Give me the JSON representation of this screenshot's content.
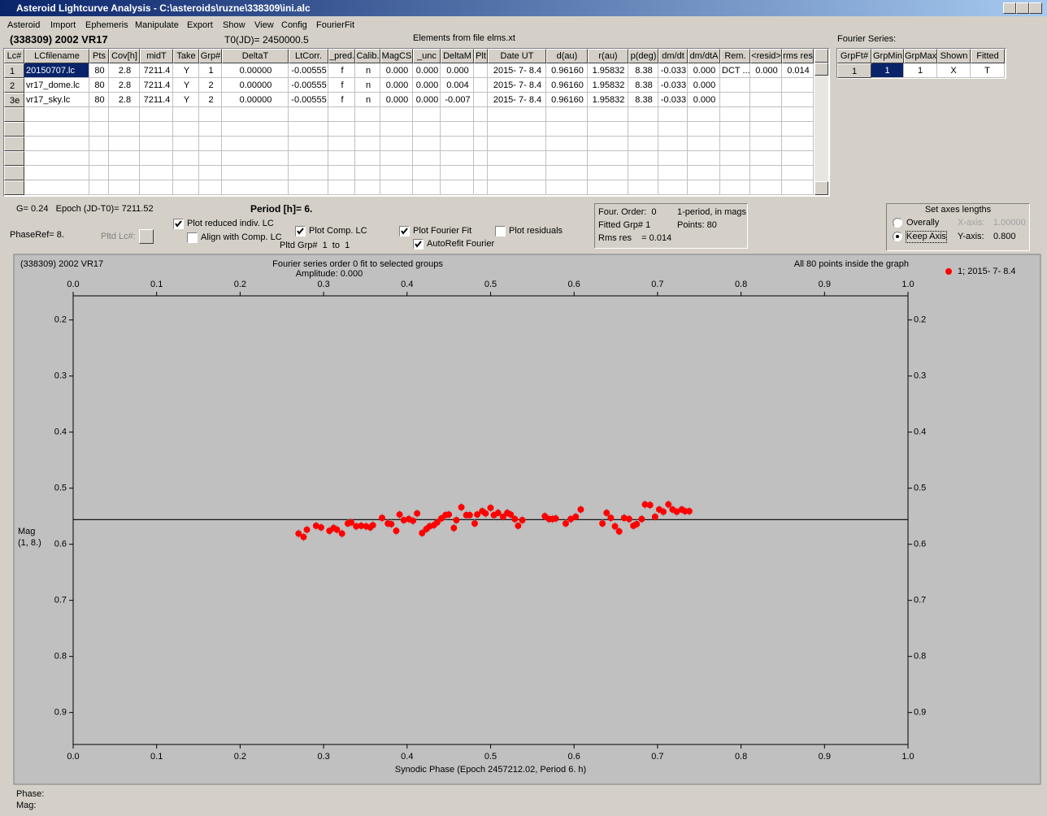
{
  "window": {
    "title": "Asteroid Lightcurve Analysis - C:\\asteroids\\ruzne\\338309\\ini.alc"
  },
  "menu": [
    "Asteroid",
    "Import",
    "Ephemeris",
    "Manipulate",
    "Export",
    "Show",
    "View",
    "Config",
    "FourierFit"
  ],
  "header": {
    "object": "(338309) 2002 VR17",
    "t0": "T0(JD)= 2450000.5",
    "elements": "Elements from file elms.xt",
    "fourier_label": "Fourier Series:"
  },
  "table": {
    "columns": [
      "Lc#",
      "LCfilename",
      "Pts",
      "Cov[h]",
      "midT",
      "Take",
      "Grp#",
      "DeltaT",
      "LtCorr.",
      "_pred.",
      "Calib.",
      "MagCS",
      "_unc",
      "DeltaM",
      "Plt",
      "Date UT",
      "d(au)",
      "r(au)",
      "p(deg)",
      "dm/dt",
      "dm/dtA",
      "Rem.",
      "<resid>",
      "rms res"
    ],
    "rows": [
      [
        "1",
        "20150707.lc",
        "80",
        "2.8",
        "7211.4",
        "Y",
        "1",
        "0.00000",
        "-0.00555",
        "f",
        "n",
        "0.000",
        "0.000",
        "0.000",
        "",
        "2015- 7- 8.4",
        "0.96160",
        "1.95832",
        "8.38",
        "-0.033",
        "0.000",
        "DCT ...",
        "0.000",
        "0.014"
      ],
      [
        "2",
        "vr17_dome.lc",
        "80",
        "2.8",
        "7211.4",
        "Y",
        "2",
        "0.00000",
        "-0.00555",
        "f",
        "n",
        "0.000",
        "0.000",
        "0.004",
        "",
        "2015- 7- 8.4",
        "0.96160",
        "1.95832",
        "8.38",
        "-0.033",
        "0.000",
        "",
        "",
        ""
      ],
      [
        "3e",
        "vr17_sky.lc",
        "80",
        "2.8",
        "7211.4",
        "Y",
        "2",
        "0.00000",
        "-0.00555",
        "f",
        "n",
        "0.000",
        "0.000",
        "-0.007",
        "",
        "2015- 7- 8.4",
        "0.96160",
        "1.95832",
        "8.38",
        "-0.033",
        "0.000",
        "",
        "",
        ""
      ]
    ]
  },
  "fourier_table": {
    "columns": [
      "GrpFt#",
      "GrpMin",
      "GrpMax",
      "Shown",
      "Fitted"
    ],
    "rows": [
      [
        "1",
        "1",
        "1",
        "X",
        "T"
      ]
    ]
  },
  "info": {
    "g_epoch": "G= 0.24   Epoch (JD-T0)= 7211.52",
    "period": "Period [h]= 6.",
    "phase_ref": "PhaseRef= 8.",
    "pltd_lc": "Pltd Lc#:",
    "pltd_grp": "Pltd Grp#  1  to  1"
  },
  "checkboxes": [
    {
      "label": "Plot reduced indiv. LC",
      "checked": true
    },
    {
      "label": "Align with Comp. LC",
      "checked": false
    },
    {
      "label": "Plot Comp. LC",
      "checked": true
    },
    {
      "label": "Plot Fourier Fit",
      "checked": true
    },
    {
      "label": "AutoRefit Fourier",
      "checked": true
    },
    {
      "label": "Plot residuals",
      "checked": false
    }
  ],
  "fit_box": {
    "order": "Four. Order:  0",
    "period_mode": "1-period, in mags",
    "fitted_grp": "Fitted Grp# 1",
    "points": "Points: 80",
    "rms": "Rms res    = 0.014"
  },
  "axes_box": {
    "title": "Set axes lengths",
    "options": [
      {
        "label": "Overally",
        "selected": false
      },
      {
        "label": "Keep Axis",
        "selected": true
      }
    ],
    "x_axis": {
      "label": "X-axis:",
      "value": "1.00000",
      "enabled": false
    },
    "y_axis": {
      "label": "Y-axis:",
      "value": "0.800",
      "enabled": true
    }
  },
  "chart_data": {
    "type": "scatter",
    "object_label": "(338309) 2002 VR17",
    "title": "Fourier series order 0 fit to selected groups",
    "subtitle": "Amplitude: 0.000",
    "note": "All 80 points inside the graph",
    "xlabel": "Synodic Phase (Epoch 2457212.02, Period 6. h)",
    "ylabel": "Mag",
    "ylabel_sub": "(1, 8.)",
    "xlim": [
      0,
      1
    ],
    "ylim": [
      0.957,
      0.157
    ],
    "xticks": [
      {
        "value": 0,
        "label": "0.0"
      },
      0.1,
      0.2,
      0.3,
      0.4,
      0.5,
      0.6,
      0.7,
      0.8,
      0.9,
      {
        "value": 1,
        "label": "1.0"
      }
    ],
    "yticks": [
      0.2,
      0.3,
      0.4,
      0.5,
      0.6,
      0.7,
      0.8,
      0.9
    ],
    "fit_level": 0.556,
    "series": [
      {
        "name": "1; 2015- 7- 8.4",
        "color": "#ff0000",
        "error": 0.008,
        "x": [
          0.27,
          0.276,
          0.28,
          0.291,
          0.297,
          0.307,
          0.312,
          0.316,
          0.322,
          0.329,
          0.333,
          0.339,
          0.345,
          0.351,
          0.356,
          0.359,
          0.37,
          0.377,
          0.381,
          0.387,
          0.391,
          0.396,
          0.402,
          0.407,
          0.412,
          0.418,
          0.423,
          0.427,
          0.432,
          0.436,
          0.441,
          0.446,
          0.45,
          0.456,
          0.459,
          0.465,
          0.471,
          0.475,
          0.481,
          0.484,
          0.49,
          0.494,
          0.5,
          0.504,
          0.509,
          0.515,
          0.52,
          0.524,
          0.529,
          0.533,
          0.538,
          0.565,
          0.57,
          0.574,
          0.578,
          0.59,
          0.596,
          0.602,
          0.608,
          0.634,
          0.639,
          0.644,
          0.649,
          0.654,
          0.66,
          0.666,
          0.671,
          0.675,
          0.681,
          0.685,
          0.691,
          0.697,
          0.702,
          0.707,
          0.713,
          0.718,
          0.723,
          0.729,
          0.733,
          0.738
        ],
        "values": [
          0.581,
          0.587,
          0.574,
          0.567,
          0.57,
          0.576,
          0.571,
          0.574,
          0.581,
          0.563,
          0.561,
          0.568,
          0.567,
          0.568,
          0.57,
          0.566,
          0.553,
          0.563,
          0.564,
          0.576,
          0.547,
          0.557,
          0.555,
          0.558,
          0.545,
          0.58,
          0.573,
          0.568,
          0.566,
          0.561,
          0.554,
          0.548,
          0.547,
          0.571,
          0.557,
          0.534,
          0.548,
          0.548,
          0.563,
          0.547,
          0.541,
          0.545,
          0.535,
          0.548,
          0.544,
          0.551,
          0.544,
          0.547,
          0.555,
          0.567,
          0.557,
          0.55,
          0.555,
          0.555,
          0.554,
          0.563,
          0.555,
          0.551,
          0.538,
          0.563,
          0.544,
          0.553,
          0.568,
          0.577,
          0.553,
          0.555,
          0.567,
          0.564,
          0.555,
          0.529,
          0.53,
          0.551,
          0.538,
          0.542,
          0.529,
          0.538,
          0.542,
          0.538,
          0.541,
          0.541
        ]
      }
    ]
  },
  "status": {
    "phase": "Phase:",
    "mag": "Mag:"
  }
}
